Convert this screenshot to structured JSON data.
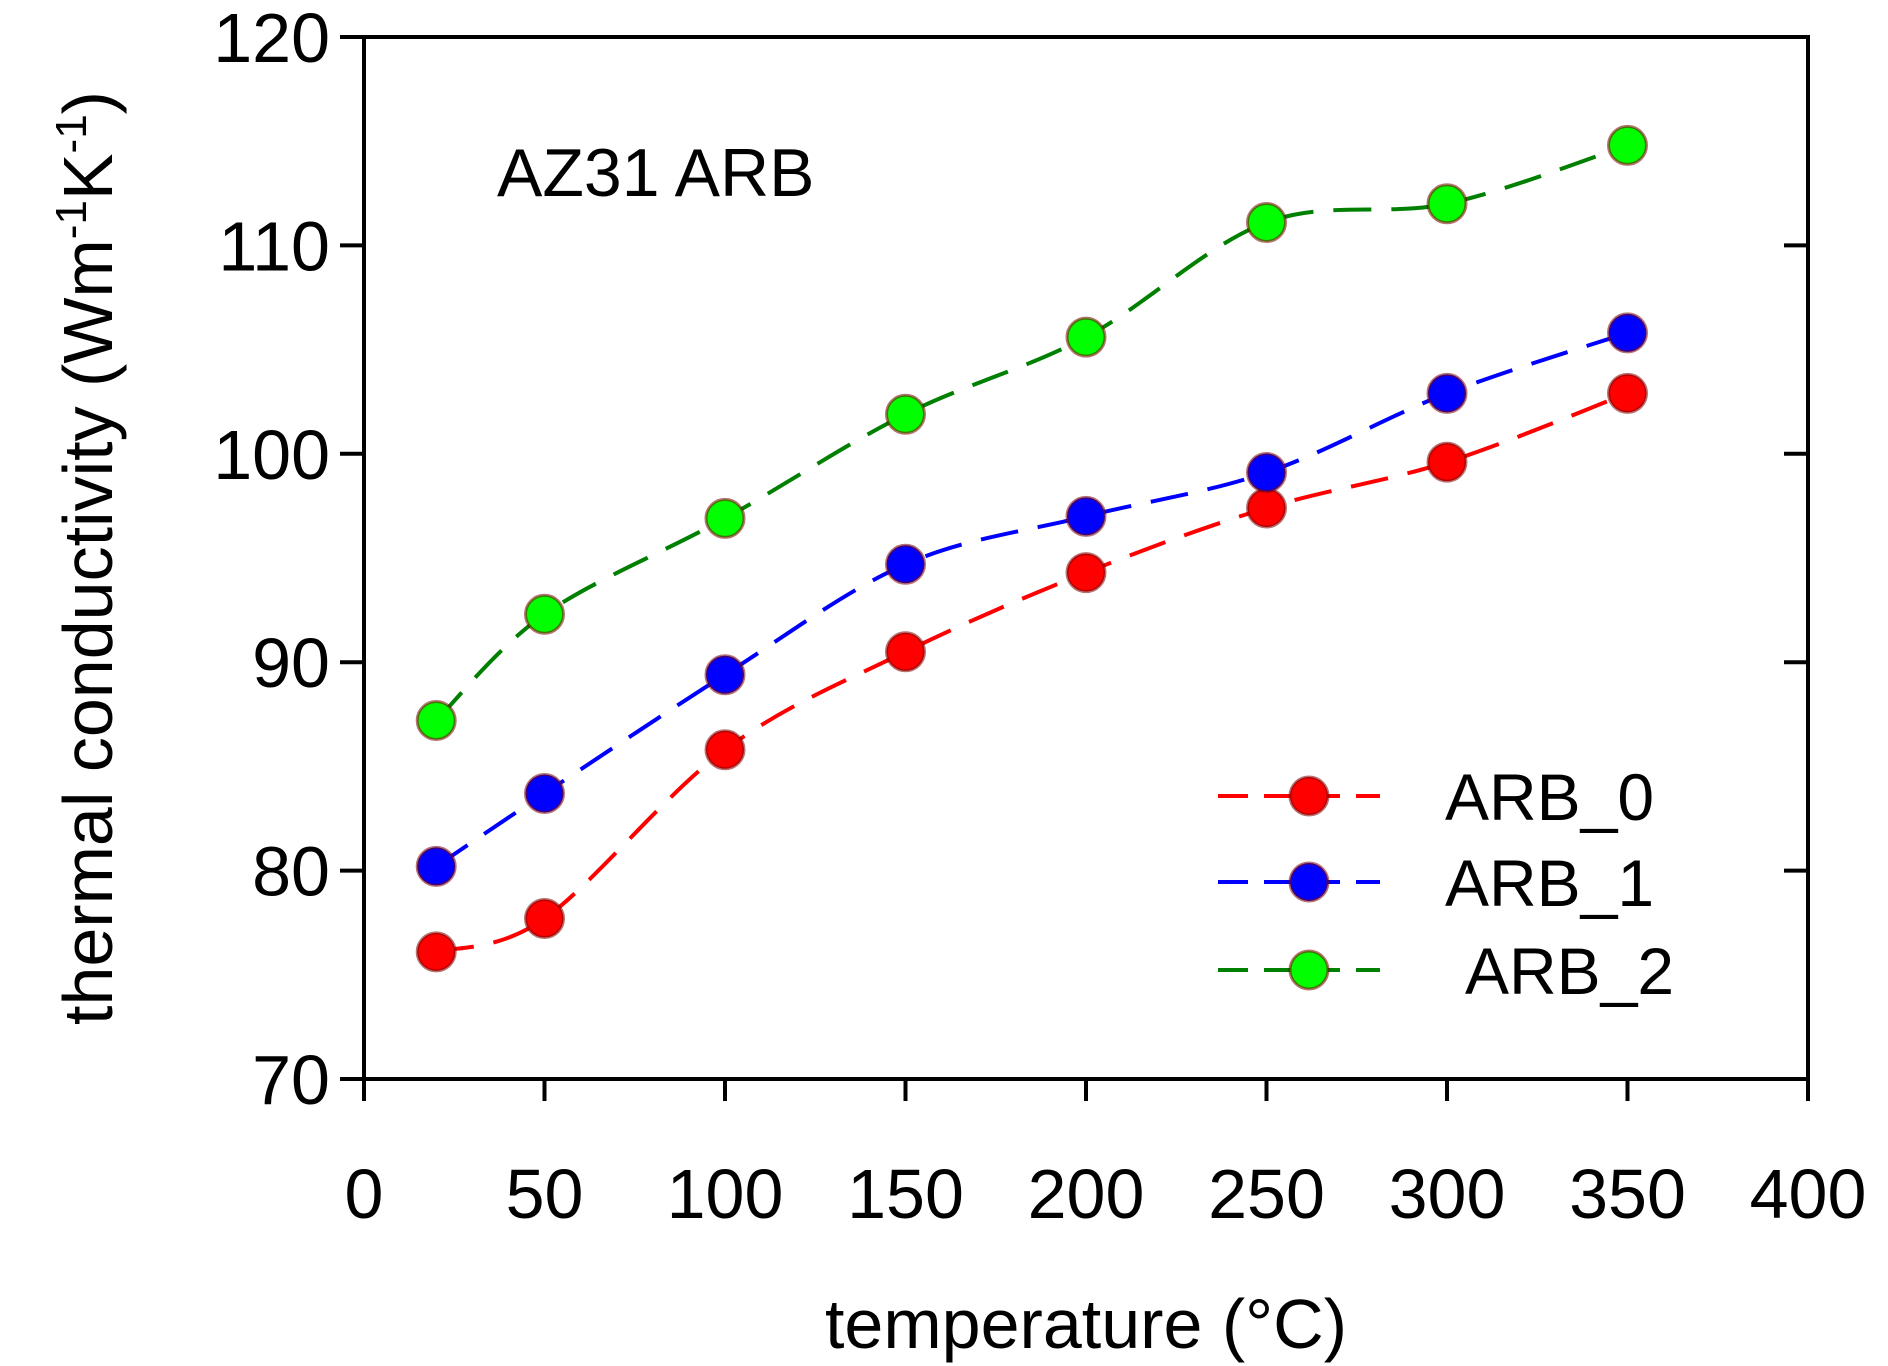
{
  "chart_data": {
    "type": "line",
    "annotation": "AZ31 ARB",
    "xlabel": "temperature (°C)",
    "ylabel_main": "thermal conductivity (Wm",
    "ylabel_sup1": "-1",
    "ylabel_mid": "K",
    "ylabel_sup2": "-1",
    "ylabel_close": ")",
    "xlim": [
      0,
      400
    ],
    "ylim": [
      70,
      120
    ],
    "xticks": [
      0,
      50,
      100,
      150,
      200,
      250,
      300,
      350,
      400
    ],
    "yticks": [
      70,
      80,
      90,
      100,
      110,
      120
    ],
    "x": [
      20,
      50,
      100,
      150,
      200,
      250,
      300,
      350
    ],
    "grid": false,
    "legend_position": "bottom-right",
    "series": [
      {
        "name": "ARB_0",
        "line_color": "#ff0000",
        "marker_color": "#ff0000",
        "values": [
          76.1,
          77.7,
          85.8,
          90.5,
          94.3,
          97.4,
          99.6,
          102.9
        ]
      },
      {
        "name": "ARB_1",
        "line_color": "#0000ff",
        "marker_color": "#0000ff",
        "values": [
          80.2,
          83.7,
          89.4,
          94.7,
          97.0,
          99.1,
          102.9,
          105.8
        ]
      },
      {
        "name": "ARB_2",
        "line_color": "#008000",
        "marker_color": "#00ff00",
        "values": [
          87.2,
          92.3,
          96.9,
          101.9,
          105.6,
          111.1,
          112.0,
          114.8
        ]
      }
    ]
  }
}
